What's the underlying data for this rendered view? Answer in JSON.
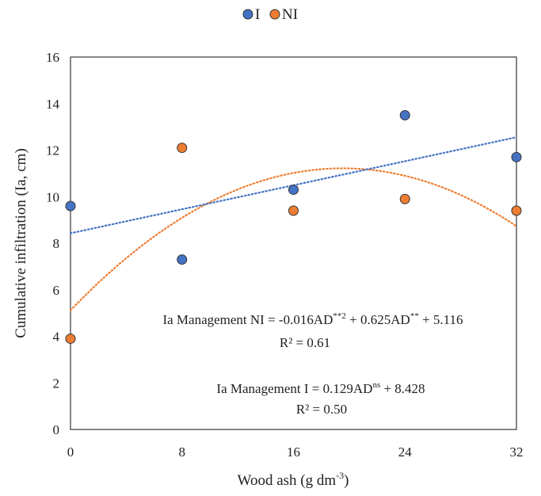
{
  "chart_data": {
    "type": "scatter",
    "xlabel": "Wood ash (g dm",
    "xlabel_sup": "-3",
    "xlabel_close": ")",
    "ylabel": "Cumulative  infiltration   (Ia, cm)",
    "xlim": [
      0,
      32
    ],
    "ylim": [
      0,
      16
    ],
    "x_ticks": [
      0,
      8,
      16,
      24,
      32
    ],
    "y_ticks": [
      0,
      2,
      4,
      6,
      8,
      10,
      12,
      14,
      16
    ],
    "grid": false,
    "legend_position": "top-center",
    "series": [
      {
        "name": "I",
        "color": "#4472C4",
        "x": [
          0,
          8,
          16,
          24,
          32
        ],
        "y": [
          9.6,
          7.3,
          10.3,
          13.5,
          11.7
        ],
        "trend": {
          "kind": "linear",
          "a": 0.129,
          "b": 8.428
        }
      },
      {
        "name": "NI",
        "color": "#ED7D31",
        "x": [
          0,
          8,
          16,
          24,
          32
        ],
        "y": [
          3.9,
          12.1,
          9.4,
          9.9,
          9.4
        ],
        "trend": {
          "kind": "quadratic",
          "a": -0.016,
          "b": 0.625,
          "c": 5.116
        }
      }
    ],
    "annotations": {
      "ni_equation": {
        "prefix": "Ia Management NI = -0.016AD",
        "sup1": "**2",
        "middle": " + 0.625AD",
        "sup2": "**",
        "suffix": " + 5.116"
      },
      "ni_r2": "R² = 0.61",
      "i_equation": {
        "prefix": "Ia Management I = 0.129AD",
        "sup": "ns",
        "suffix": " + 8.428"
      },
      "i_r2": "R² = 0.50"
    }
  }
}
